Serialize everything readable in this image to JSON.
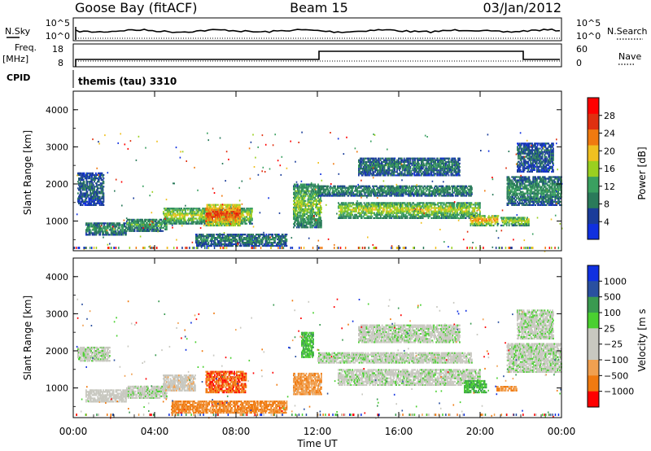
{
  "header": {
    "station": "Goose Bay (fitACF)",
    "beam": "Beam 15",
    "date": "03/Jan/2012"
  },
  "top_panels": {
    "nsky_label": "N.Sky",
    "nsearch_label": "N.Search",
    "nsky_ticks": [
      "10^5",
      "10^0"
    ],
    "nsearch_ticks": [
      "10^5",
      "10^0"
    ],
    "freq_label": "Freq.",
    "freq_unit": "[MHz]",
    "freq_ticks": [
      "18",
      "8"
    ],
    "nave_label": "Nave",
    "nave_ticks": [
      "60",
      "0"
    ],
    "cpid_label": "CPID",
    "cpid_value": "themis (tau) 3310"
  },
  "colors": {
    "power": [
      "#1030e0",
      "#1a3c9a",
      "#2a7a5a",
      "#3aa060",
      "#9ad020",
      "#f0c020",
      "#f07a10",
      "#e03010",
      "#ff0000"
    ],
    "velocity": [
      "#ff0000",
      "#f07a10",
      "#f0a050",
      "#c8c8c0",
      "#c8c8c0",
      "#4ad030",
      "#3a9a50",
      "#2a50a0",
      "#1030e0"
    ]
  },
  "chart_data": [
    {
      "type": "heatmap",
      "title": "",
      "ylabel": "Slant Range [km]",
      "xlabel": "",
      "x_range_hours": [
        0,
        24
      ],
      "ylim": [
        200,
        4500
      ],
      "yticks": [
        "1000",
        "2000",
        "3000",
        "4000"
      ],
      "colorbar_label": "Power [dB]",
      "colorbar_ticks": [
        "4",
        "8",
        "12",
        "16",
        "20",
        "24",
        "28"
      ],
      "colorbar_range": [
        0,
        32
      ],
      "bands": [
        {
          "t0": 0.6,
          "t1": 2.6,
          "r0": 600,
          "r1": 950,
          "level": 0.35
        },
        {
          "t0": 2.6,
          "t1": 4.6,
          "r0": 700,
          "r1": 1050,
          "level": 0.4
        },
        {
          "t0": 4.4,
          "t1": 8.8,
          "r0": 900,
          "r1": 1350,
          "level": 0.55
        },
        {
          "t0": 6.5,
          "t1": 8.2,
          "r0": 850,
          "r1": 1450,
          "level": 0.85
        },
        {
          "t0": 6.0,
          "t1": 10.5,
          "r0": 300,
          "r1": 650,
          "level": 0.3
        },
        {
          "t0": 0.2,
          "t1": 1.5,
          "r0": 1400,
          "r1": 2300,
          "level": 0.25
        },
        {
          "t0": 10.8,
          "t1": 12.2,
          "r0": 800,
          "r1": 2000,
          "level": 0.5
        },
        {
          "t0": 12.0,
          "t1": 19.6,
          "r0": 1650,
          "r1": 1950,
          "level": 0.35
        },
        {
          "t0": 13.0,
          "t1": 20.0,
          "r0": 1050,
          "r1": 1500,
          "level": 0.55
        },
        {
          "t0": 14.0,
          "t1": 19.0,
          "r0": 2200,
          "r1": 2700,
          "level": 0.3
        },
        {
          "t0": 19.5,
          "t1": 20.9,
          "r0": 850,
          "r1": 1150,
          "level": 0.7
        },
        {
          "t0": 21.0,
          "t1": 22.4,
          "r0": 850,
          "r1": 1100,
          "level": 0.55
        },
        {
          "t0": 21.3,
          "t1": 24.0,
          "r0": 1400,
          "r1": 2200,
          "level": 0.35
        },
        {
          "t0": 21.8,
          "t1": 23.6,
          "r0": 2300,
          "r1": 3100,
          "level": 0.25
        }
      ]
    },
    {
      "type": "heatmap",
      "title": "",
      "ylabel": "Slant Range [km]",
      "xlabel": "Time UT",
      "x_range_hours": [
        0,
        24
      ],
      "xticks": [
        "00:00",
        "04:00",
        "08:00",
        "12:00",
        "16:00",
        "20:00",
        "00:00"
      ],
      "ylim": [
        200,
        4500
      ],
      "yticks": [
        "1000",
        "2000",
        "3000",
        "4000"
      ],
      "colorbar_label": "Velocity [m s",
      "colorbar_ticks": [
        "1000",
        "500",
        "100",
        "25",
        "−25",
        "−100",
        "−500",
        "−1000"
      ],
      "bands": [
        {
          "t0": 0.6,
          "t1": 2.6,
          "r0": 600,
          "r1": 950,
          "level": 0.45
        },
        {
          "t0": 2.6,
          "t1": 4.6,
          "r0": 700,
          "r1": 1050,
          "level": 0.5
        },
        {
          "t0": 4.4,
          "t1": 6.0,
          "r0": 900,
          "r1": 1350,
          "level": 0.4
        },
        {
          "t0": 6.5,
          "t1": 8.5,
          "r0": 850,
          "r1": 1450,
          "level": 0.15
        },
        {
          "t0": 4.8,
          "t1": 10.5,
          "r0": 300,
          "r1": 650,
          "level": 0.2
        },
        {
          "t0": 0.2,
          "t1": 1.8,
          "r0": 1700,
          "r1": 2100,
          "level": 0.5
        },
        {
          "t0": 10.8,
          "t1": 12.2,
          "r0": 800,
          "r1": 1400,
          "level": 0.25
        },
        {
          "t0": 11.2,
          "t1": 11.8,
          "r0": 1800,
          "r1": 2500,
          "level": 0.65
        },
        {
          "t0": 12.0,
          "t1": 19.6,
          "r0": 1650,
          "r1": 1950,
          "level": 0.5
        },
        {
          "t0": 13.0,
          "t1": 20.0,
          "r0": 1050,
          "r1": 1500,
          "level": 0.5
        },
        {
          "t0": 14.0,
          "t1": 19.0,
          "r0": 2200,
          "r1": 2700,
          "level": 0.5
        },
        {
          "t0": 19.2,
          "t1": 20.3,
          "r0": 850,
          "r1": 1200,
          "level": 0.65
        },
        {
          "t0": 20.8,
          "t1": 21.8,
          "r0": 900,
          "r1": 1050,
          "level": 0.2
        },
        {
          "t0": 21.3,
          "t1": 24.0,
          "r0": 1400,
          "r1": 2200,
          "level": 0.5
        },
        {
          "t0": 21.8,
          "t1": 23.6,
          "r0": 2300,
          "r1": 3100,
          "level": 0.5
        }
      ]
    }
  ]
}
